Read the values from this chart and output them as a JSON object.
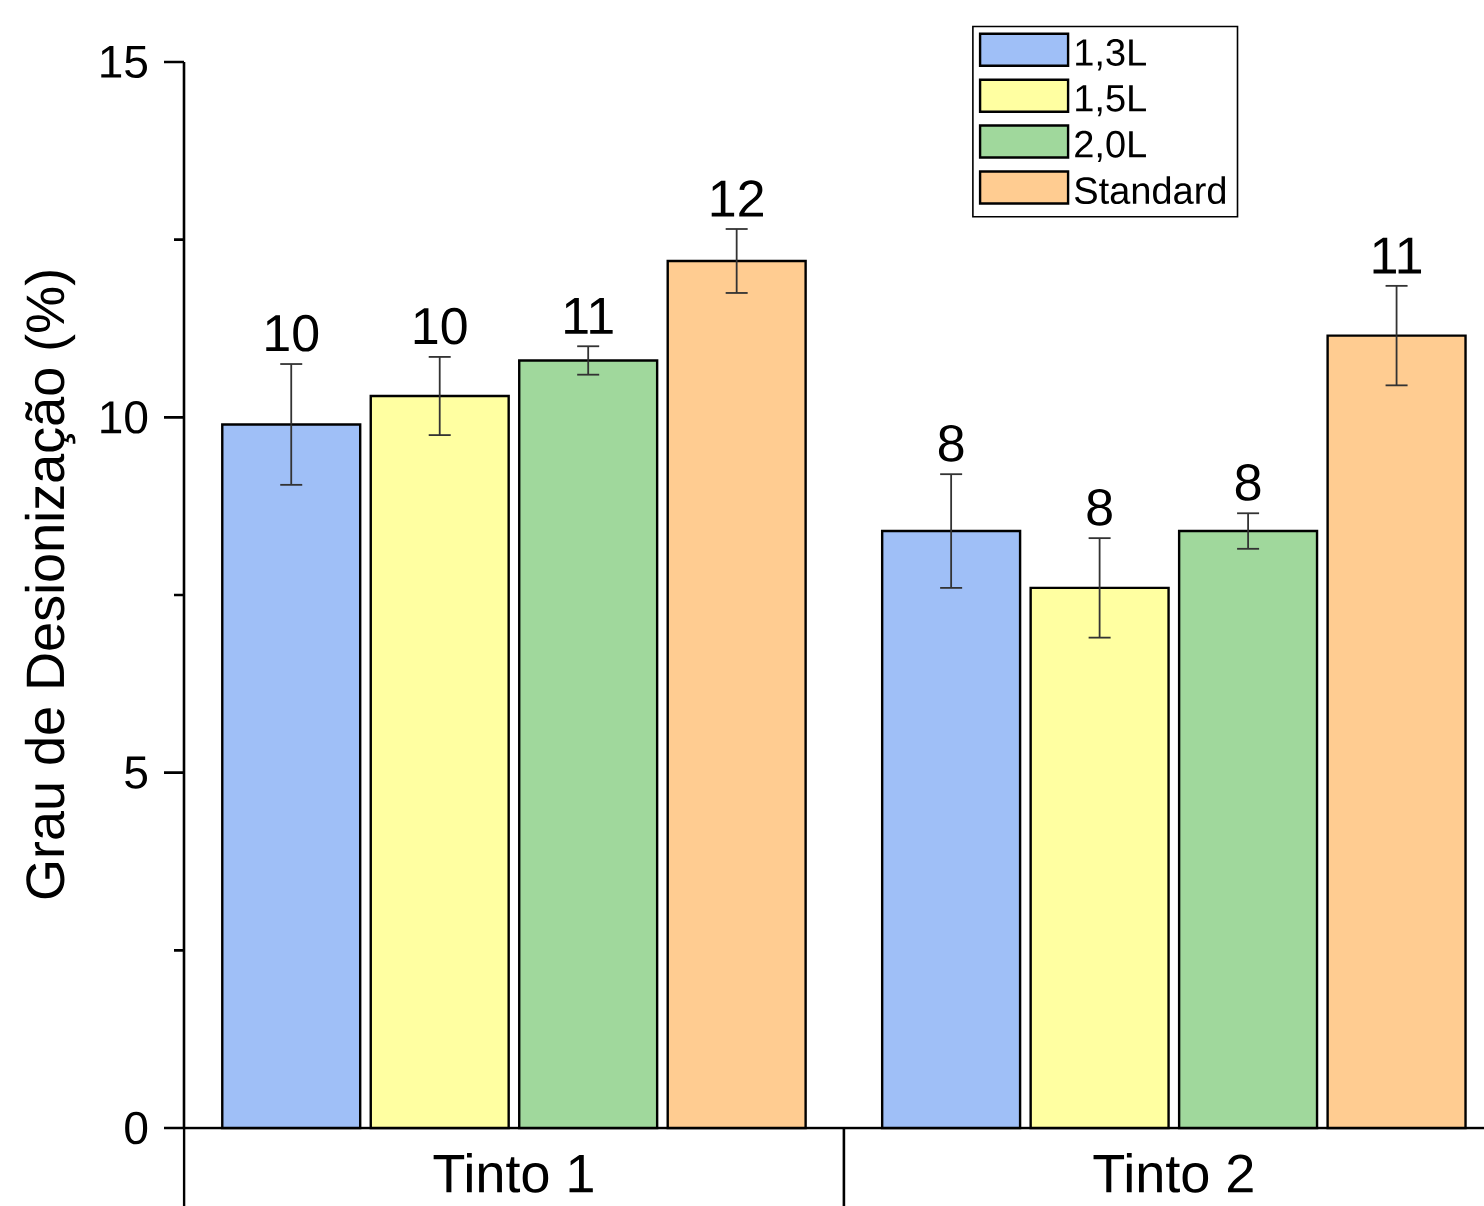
{
  "chart_data": {
    "type": "bar",
    "categories": [
      "Tinto 1",
      "Tinto 2"
    ],
    "ylabel": "Grau de Desionização (%)",
    "ylim": [
      0,
      15
    ],
    "yticks": [
      0,
      {
        "value": 2.5,
        "label": null
      },
      5,
      {
        "value": 7.5,
        "label": null
      },
      10,
      {
        "value": 12.5,
        "label": null
      },
      15
    ],
    "legend": "top right",
    "series": [
      {
        "name": "1,3L",
        "color": "#9fbff7",
        "values": [
          9.9,
          8.4
        ],
        "errors": [
          0.85,
          0.8
        ],
        "value_labels": [
          "10",
          "8"
        ]
      },
      {
        "name": "1,5L",
        "color": "#ffffa1",
        "values": [
          10.3,
          7.6
        ],
        "errors": [
          0.55,
          0.7
        ],
        "value_labels": [
          "10",
          "8"
        ]
      },
      {
        "name": "2,0L",
        "color": "#a0d89c",
        "values": [
          10.8,
          8.4
        ],
        "errors": [
          0.2,
          0.25
        ],
        "value_labels": [
          "11",
          "8"
        ]
      },
      {
        "name": "Standard",
        "color": "#ffcc91",
        "values": [
          12.2,
          11.15
        ],
        "errors": [
          0.45,
          0.7
        ],
        "value_labels": [
          "12",
          "11"
        ]
      }
    ]
  }
}
